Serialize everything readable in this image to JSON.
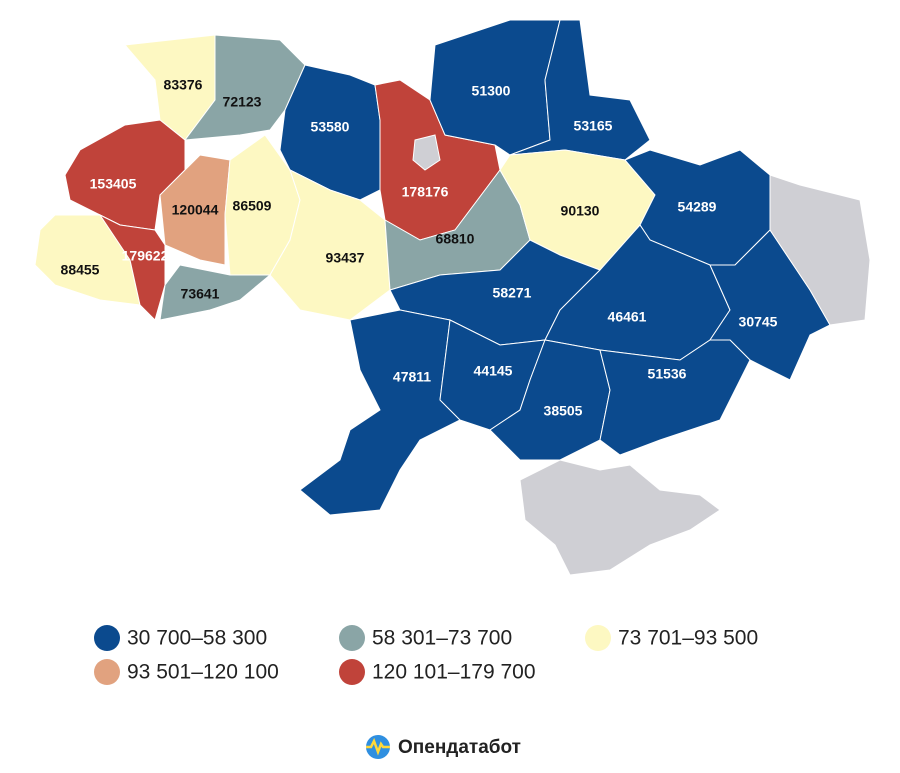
{
  "regions": [
    {
      "value": 83376,
      "color": "#fdf8c2"
    },
    {
      "value": 72123,
      "color": "#8aa5a6"
    },
    {
      "value": 53580,
      "color": "#0b4a8e"
    },
    {
      "value": 178176,
      "color": "#c0433a"
    },
    {
      "value": 51300,
      "color": "#0b4a8e"
    },
    {
      "value": 53165,
      "color": "#0b4a8e"
    },
    {
      "value": 153405,
      "color": "#c0433a"
    },
    {
      "value": 120044,
      "color": "#e1a27f"
    },
    {
      "value": 86509,
      "color": "#fdf8c2"
    },
    {
      "value": 93437,
      "color": "#fdf8c2"
    },
    {
      "value": 68810,
      "color": "#8aa5a6"
    },
    {
      "value": 90130,
      "color": "#fdf8c2"
    },
    {
      "value": 54289,
      "color": "#0b4a8e"
    },
    {
      "value": 88455,
      "color": "#fdf8c2"
    },
    {
      "value": 179622,
      "color": "#c0433a"
    },
    {
      "value": 73641,
      "color": "#8aa5a6"
    },
    {
      "value": 58271,
      "color": "#0b4a8e"
    },
    {
      "value": 46461,
      "color": "#0b4a8e"
    },
    {
      "value": 30745,
      "color": "#0b4a8e"
    },
    {
      "value": 47811,
      "color": "#0b4a8e"
    },
    {
      "value": 44145,
      "color": "#0b4a8e"
    },
    {
      "value": 38505,
      "color": "#0b4a8e"
    },
    {
      "value": 51536,
      "color": "#0b4a8e"
    }
  ],
  "legend": [
    {
      "label": "30 700–58 300",
      "color": "#0b4a8e"
    },
    {
      "label": "58 301–73 700",
      "color": "#8aa5a6"
    },
    {
      "label": "73 701–93 500",
      "color": "#fdf8c2"
    },
    {
      "label": "93 501–120 100",
      "color": "#e1a27f"
    },
    {
      "label": "120 101–179 700",
      "color": "#c0433a"
    }
  ],
  "brand": "Опендатабот"
}
